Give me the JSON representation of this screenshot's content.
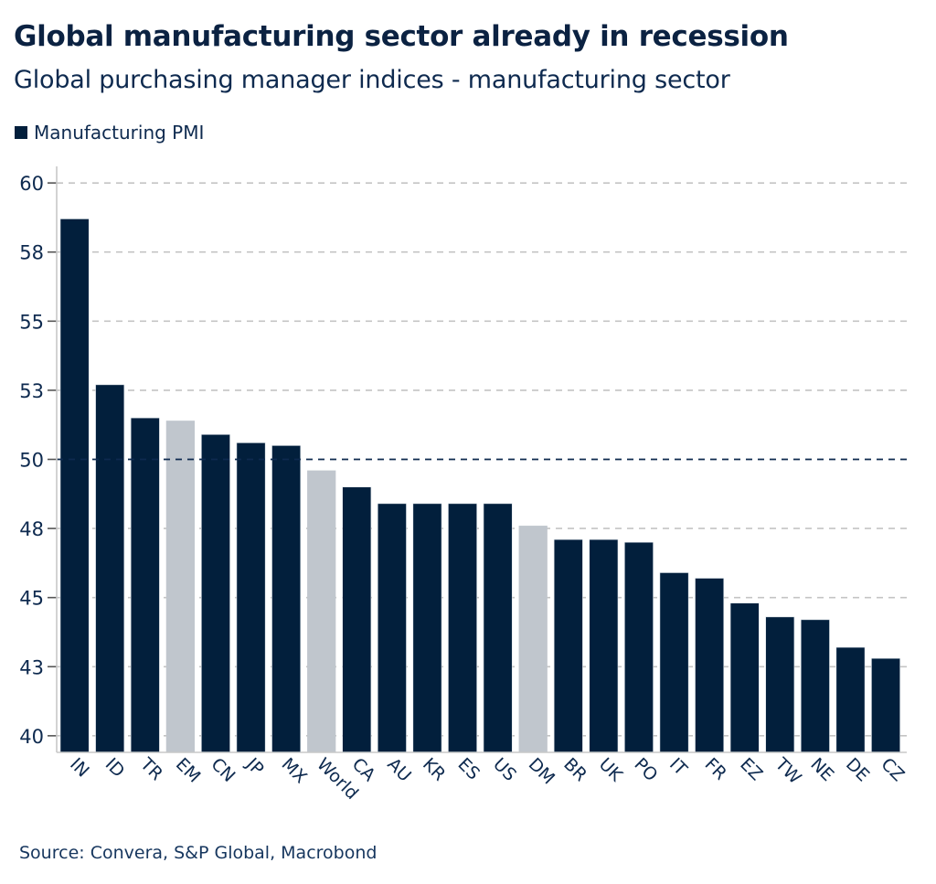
{
  "title": "Global manufacturing sector already in recession",
  "subtitle": "Global purchasing manager indices - manufacturing sector",
  "source": "Source: Convera, S&P Global, Macrobond",
  "colors": {
    "primary": "#021f3c",
    "highlight": "#c0c6cd",
    "grid": "#c4c4c4",
    "reference_line": "#0e2a4f",
    "text": "#0e2a4f"
  },
  "chart_data": {
    "type": "bar",
    "title": "Global manufacturing sector already in recession",
    "subtitle": "Global purchasing manager indices - manufacturing sector",
    "xlabel": "",
    "ylabel": "",
    "legend": {
      "position": "top-left",
      "entries": [
        "Manufacturing PMI"
      ]
    },
    "categories": [
      "IN",
      "ID",
      "TR",
      "EM",
      "CN",
      "JP",
      "MX",
      "World",
      "CA",
      "AU",
      "KR",
      "ES",
      "US",
      "DM",
      "BR",
      "UK",
      "PO",
      "IT",
      "FR",
      "EZ",
      "TW",
      "NE",
      "DE",
      "CZ"
    ],
    "series": [
      {
        "name": "Manufacturing PMI",
        "values": [
          58.7,
          52.7,
          51.5,
          51.4,
          50.9,
          50.6,
          50.5,
          49.6,
          49.0,
          48.4,
          48.4,
          48.4,
          48.4,
          47.6,
          47.1,
          47.1,
          47.0,
          45.9,
          45.7,
          44.8,
          44.3,
          44.2,
          43.2,
          42.8
        ]
      }
    ],
    "highlighted_categories": [
      "EM",
      "World",
      "DM"
    ],
    "ylim": [
      39.4,
      60.6
    ],
    "yticks": [
      60,
      57.5,
      55,
      52.5,
      50,
      47.5,
      45,
      42.5,
      40
    ],
    "ytick_labels": [
      "60",
      "58",
      "55",
      "53",
      "50",
      "48",
      "45",
      "43",
      "40"
    ],
    "reference_line": 50,
    "grid": true,
    "grid_style": "dashed horizontal"
  }
}
